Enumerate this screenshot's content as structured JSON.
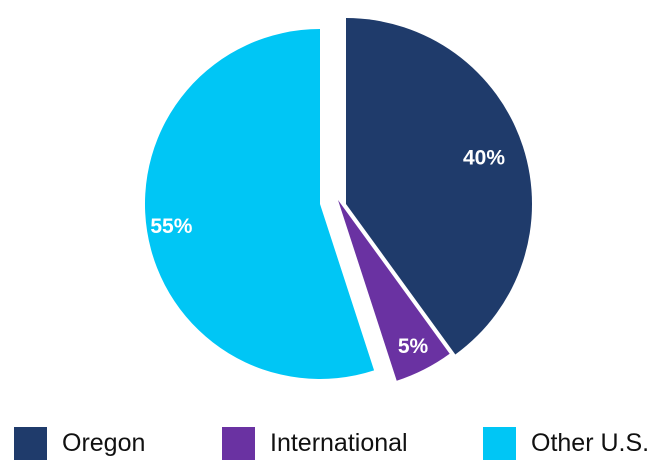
{
  "chart_data": {
    "type": "pie",
    "title": "",
    "slices": [
      {
        "name": "Oregon",
        "value": 40,
        "label": "40%",
        "color": "#1f3b6b"
      },
      {
        "name": "International",
        "value": 5,
        "label": "5%",
        "color": "#6a32a2"
      },
      {
        "name": "Other U.S.",
        "value": 55,
        "label": "55%",
        "color": "#00c6f5"
      }
    ],
    "start_angle_deg": 0,
    "direction": "clockwise",
    "exploded": true,
    "legend": {
      "position": "bottom",
      "entries": [
        "Oregon",
        "International",
        "Other U.S."
      ]
    }
  }
}
